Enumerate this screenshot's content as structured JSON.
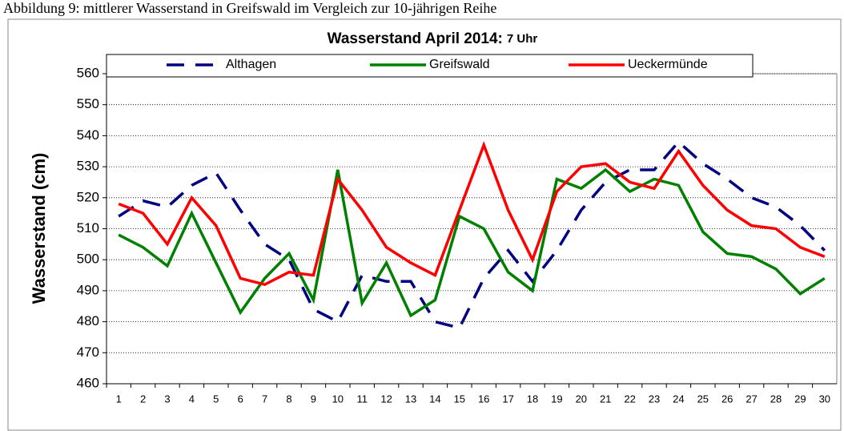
{
  "caption": "Abbildung 9: mittlerer Wasserstand in Greifswald im Vergleich zur 10-jährigen Reihe",
  "chart_data": {
    "type": "line",
    "title": "Wasserstand April 2014:",
    "subtitle": "7 Uhr",
    "y_label": "Wasserstand (cm)",
    "categories": [
      "1",
      "2",
      "3",
      "4",
      "5",
      "6",
      "7",
      "8",
      "9",
      "10",
      "11",
      "12",
      "13",
      "14",
      "15",
      "16",
      "17",
      "18",
      "19",
      "20",
      "21",
      "22",
      "23",
      "24",
      "25",
      "26",
      "27",
      "28",
      "29",
      "30"
    ],
    "series": [
      {
        "name": "Althagen",
        "color": "#000080",
        "style": "dashed",
        "values": [
          514,
          519,
          517,
          524,
          528,
          516,
          505,
          500,
          484,
          480,
          495,
          493,
          493,
          480,
          478,
          494,
          503,
          493,
          503,
          516,
          525,
          529,
          529,
          538,
          531,
          526,
          520,
          517,
          511,
          503
        ]
      },
      {
        "name": "Greifswald",
        "color": "#008000",
        "style": "solid",
        "values": [
          508,
          504,
          498,
          515,
          499,
          483,
          494,
          502,
          487,
          529,
          486,
          499,
          482,
          487,
          514,
          510,
          496,
          490,
          526,
          523,
          529,
          522,
          526,
          524,
          509,
          502,
          501,
          497,
          489,
          494
        ]
      },
      {
        "name": "Ueckermünde",
        "color": "#ff0000",
        "style": "solid",
        "values": [
          518,
          515,
          505,
          520,
          511,
          494,
          492,
          496,
          495,
          526,
          516,
          504,
          499,
          495,
          516,
          537,
          516,
          500,
          522,
          530,
          531,
          525,
          523,
          535,
          524,
          516,
          511,
          510,
          504,
          501
        ]
      }
    ],
    "ylim": [
      460,
      560
    ],
    "yticks": [
      460,
      470,
      480,
      490,
      500,
      510,
      520,
      530,
      540,
      550,
      560
    ],
    "grid": true,
    "legend": "top"
  }
}
